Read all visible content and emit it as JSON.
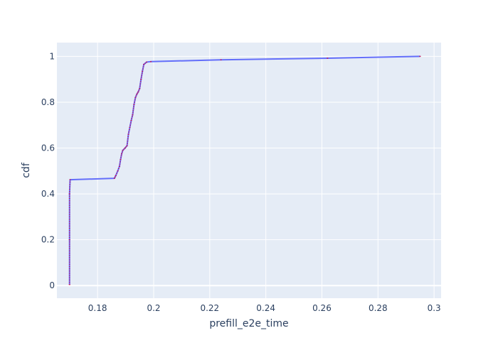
{
  "chart_data": {
    "type": "line",
    "title": "",
    "xlabel": "prefill_e2e_time",
    "ylabel": "cdf",
    "xlim": [
      0.1655,
      0.3025
    ],
    "ylim": [
      -0.055,
      1.06
    ],
    "x_ticks": [
      0.18,
      0.2,
      0.22,
      0.24,
      0.26,
      0.28,
      0.3
    ],
    "x_tick_labels": [
      "0.18",
      "0.2",
      "0.22",
      "0.24",
      "0.26",
      "0.28",
      "0.3"
    ],
    "y_ticks": [
      0,
      0.2,
      0.4,
      0.6,
      0.8,
      1
    ],
    "y_tick_labels": [
      "0",
      "0.2",
      "0.4",
      "0.6",
      "0.8",
      "1"
    ],
    "grid": true,
    "legend": "none",
    "colors": {
      "line": "#636efa",
      "marker": "#c2185b",
      "plot_bg": "#e5ecf6",
      "text": "#2a3f5f"
    },
    "series": [
      {
        "x": [
          0.17,
          0.17,
          0.17,
          0.1702,
          0.186,
          0.1865,
          0.1872,
          0.1878,
          0.1882,
          0.1886,
          0.189,
          0.1898,
          0.1905,
          0.191,
          0.1915,
          0.192,
          0.1925,
          0.193,
          0.1935,
          0.194,
          0.1945,
          0.195,
          0.1955,
          0.196,
          0.1965,
          0.1975,
          0.199,
          0.224,
          0.262,
          0.295
        ],
        "y": [
          0.005,
          0.2,
          0.4,
          0.462,
          0.468,
          0.48,
          0.5,
          0.52,
          0.55,
          0.575,
          0.59,
          0.6,
          0.61,
          0.66,
          0.69,
          0.72,
          0.745,
          0.79,
          0.82,
          0.835,
          0.845,
          0.86,
          0.9,
          0.935,
          0.965,
          0.975,
          0.977,
          0.985,
          0.992,
          1.0
        ]
      }
    ]
  }
}
